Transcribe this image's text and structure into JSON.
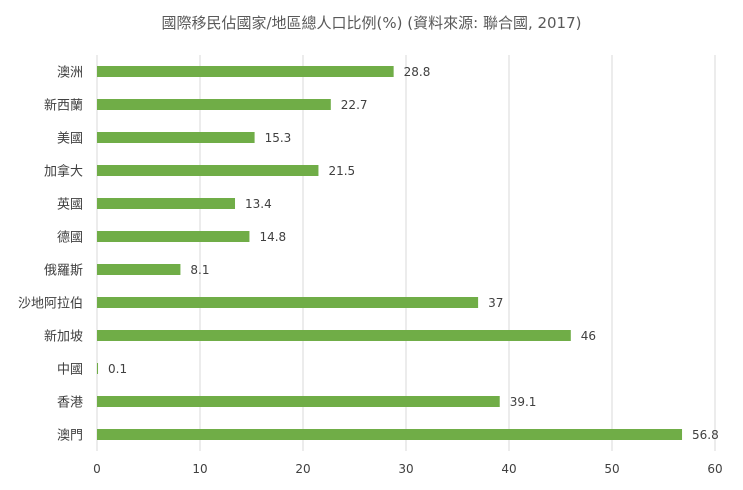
{
  "chart_data": {
    "type": "bar",
    "orientation": "horizontal",
    "title": "國際移民佔國家/地區總人口比例(%) (資料來源: 聯合國, 2017)",
    "categories": [
      "澳洲",
      "新西蘭",
      "美國",
      "加拿大",
      "英國",
      "德國",
      "俄羅斯",
      "沙地阿拉伯",
      "新加坡",
      "中國",
      "香港",
      "澳門"
    ],
    "values": [
      28.8,
      22.7,
      15.3,
      21.5,
      13.4,
      14.8,
      8.1,
      37,
      46,
      0.1,
      39.1,
      56.8
    ],
    "data_labels": [
      "28.8",
      "22.7",
      "15.3",
      "21.5",
      "13.4",
      "14.8",
      "8.1",
      "37",
      "46",
      "0.1",
      "39.1",
      "56.8"
    ],
    "xlim": [
      0,
      60
    ],
    "x_ticks": [
      0,
      10,
      20,
      30,
      40,
      50,
      60
    ],
    "grid": true,
    "legend": "none",
    "xlabel": "",
    "ylabel": "",
    "colors": {
      "bar": "#70ad47",
      "grid": "#d9d9d9",
      "text": "#404040",
      "title": "#595959"
    }
  }
}
